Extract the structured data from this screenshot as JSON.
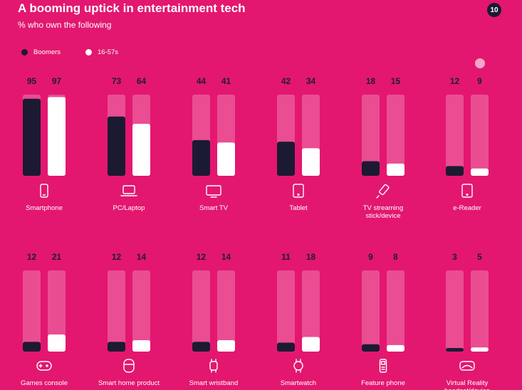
{
  "header": {
    "title": "A booming uptick in entertainment tech",
    "subtitle": "% who own the following",
    "page_number": "10"
  },
  "colors": {
    "background": "#e3176f",
    "boomers": "#1c1a33",
    "gen": "#ffffff",
    "track": "#ea4d92"
  },
  "chart_data": {
    "type": "bar",
    "title": "A booming uptick in entertainment tech",
    "subtitle": "% who own the following",
    "ylabel": "%",
    "ylim": [
      0,
      100
    ],
    "legend": [
      "Boomers",
      "16-57s"
    ],
    "categories": [
      "Smartphone",
      "PC/Laptop",
      "Smart TV",
      "Tablet",
      "TV streaming stick/device",
      "e-Reader",
      "Games console",
      "Smart home product",
      "Smart wristband",
      "Smartwatch",
      "Feature phone",
      "Virtual Reality headset/device"
    ],
    "series": [
      {
        "name": "Boomers",
        "values": [
          95,
          73,
          44,
          42,
          18,
          12,
          12,
          12,
          12,
          11,
          9,
          3
        ]
      },
      {
        "name": "16-57s",
        "values": [
          97,
          64,
          41,
          34,
          15,
          9,
          21,
          14,
          14,
          18,
          8,
          5
        ]
      }
    ],
    "icons": [
      "smartphone-icon",
      "laptop-icon",
      "smart-tv-icon",
      "tablet-icon",
      "streaming-stick-icon",
      "e-reader-icon",
      "games-console-icon",
      "smart-home-icon",
      "smart-wristband-icon",
      "smartwatch-icon",
      "feature-phone-icon",
      "vr-headset-icon"
    ]
  }
}
